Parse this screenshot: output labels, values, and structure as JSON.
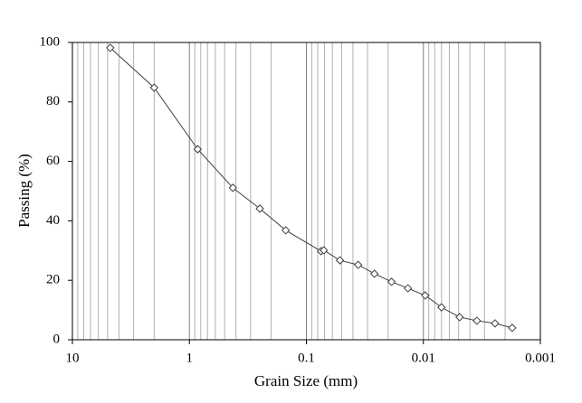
{
  "chart_data": {
    "type": "line",
    "x_label": "Grain Size (mm)",
    "y_label": "Passing (%)",
    "x": [
      4.75,
      2.0,
      0.85,
      0.425,
      0.25,
      0.15,
      0.075,
      0.071,
      0.0517,
      0.0361,
      0.0262,
      0.0187,
      0.01355,
      0.00964,
      0.007,
      0.0049,
      0.00349,
      0.00244,
      0.00174
    ],
    "series": [
      {
        "color": "#404040",
        "values": [
          98.2,
          84.8,
          64.1,
          51.1,
          44.1,
          36.8,
          29.8,
          30.1,
          26.7,
          25.2,
          22.2,
          19.5,
          17.3,
          14.9,
          10.9,
          7.6,
          6.4,
          5.5,
          4.0
        ]
      }
    ],
    "xlim": [
      10,
      0.001
    ],
    "xticks": [
      10,
      1,
      0.1,
      0.01,
      0.001
    ],
    "x_log": true,
    "ylim": [
      0,
      100
    ],
    "yticks": [
      0,
      20,
      40,
      60,
      80,
      100
    ],
    "x_grid": true,
    "x_minor_grid": true,
    "marker": "open-diamond"
  }
}
